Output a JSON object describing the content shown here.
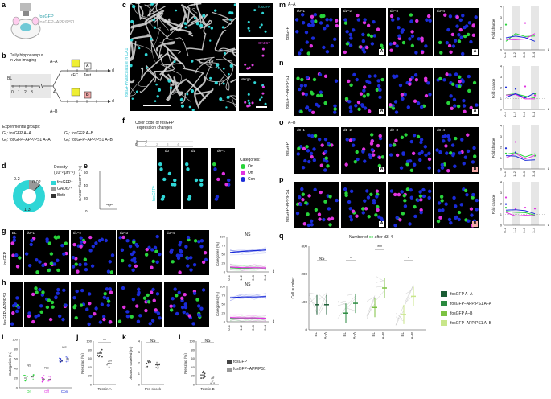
{
  "panel_letters": [
    "a",
    "b",
    "c",
    "d",
    "e",
    "f",
    "g",
    "h",
    "i",
    "j",
    "k",
    "l",
    "m",
    "n",
    "o",
    "p",
    "q"
  ],
  "a": {
    "line1": "fosGFP",
    "line2": "fosGFP–APP/PS1"
  },
  "b": {
    "title": "Daily hippocampus\nin vivo imaging",
    "bl": "BL",
    "d": "d",
    "ticks": [
      "0",
      "1",
      "2",
      "3",
      "4"
    ],
    "aa": "A–A",
    "ab": "A–B",
    "cfc": "cFC",
    "test": "Test",
    "box_a": "A",
    "box_b": "B",
    "groups_title": "Experimental groups:",
    "groups": [
      "G₁: fosGFP A–A",
      "G₂: fosGFP–APP/PS1 A–A",
      "G₃: fosGFP A–B",
      "G₄: fosGFP–APP/PS1 A–B"
    ]
  },
  "c": {
    "side": "fosGFP/vasculature in CA1",
    "inset1": "fosGFP",
    "inset2": "GAD67",
    "inset3": "Merge"
  },
  "d": {
    "title": "Density",
    "unit": "(10⁻² μm⁻²)",
    "v1": "1.3",
    "v2": "0.2",
    "v3": "0.02",
    "legend": [
      "fosGFP⁺",
      "GAD67⁺",
      "Both"
    ]
  },
  "e": {
    "ylabel": "GAD67⁺/fosGFP⁺ (%)",
    "ticks": [
      "0",
      "20",
      "40",
      "60"
    ]
  },
  "f": {
    "title": "Color code of fosGFP\nexpression changes",
    "ticks": [
      "0",
      "1",
      "2",
      "3",
      "4"
    ],
    "h1": "d0",
    "h2": "d1",
    "h3": "d0–1",
    "side": "fosGFP⁺",
    "cat_title": "Categories:",
    "cats": [
      "On",
      "Off",
      "Con"
    ]
  },
  "gh": {
    "headers": [
      "BL",
      "d0–1",
      "d1–2",
      "d2–3",
      "d3–4"
    ],
    "g_side": "fosGFP",
    "h_side": "fosGFP–APP/PS1",
    "ns": "NS",
    "ylabel": "Categories (%)",
    "yticks": [
      "0",
      "25",
      "50",
      "75",
      "100"
    ],
    "xticks": [
      "0–1",
      "1–2",
      "2–3",
      "3–4"
    ],
    "d": "d"
  },
  "i": {
    "ylabel": "Categories (%)",
    "yticks": [
      "0",
      "20",
      "40",
      "60",
      "80",
      "100"
    ],
    "x": [
      "On",
      "Off",
      "Con"
    ],
    "ns": "NS"
  },
  "j": {
    "ylabel": "Freezing (%)",
    "yticks": [
      "0",
      "20",
      "40",
      "60",
      "80",
      "100"
    ],
    "x": "Test in A",
    "sig": "**"
  },
  "k": {
    "ylabel": "Distance traveled (m)",
    "yticks": [
      "0",
      "1",
      "2",
      "3",
      "4"
    ],
    "x": "Pre-shock",
    "ns": "NS"
  },
  "l": {
    "ylabel": "Freezing (%)",
    "yticks": [
      "0",
      "20",
      "40",
      "60",
      "80",
      "100"
    ],
    "x": "Test in B",
    "ns": "NS"
  },
  "jkl_legend": [
    "fosGFP",
    "fosGFP–APP/PS1"
  ],
  "mnop": {
    "headers": [
      "d0–1",
      "d1–2",
      "d2–3",
      "d3–4"
    ],
    "m_cond": "A–A",
    "o_cond": "A–B",
    "m_side": "fosGFP",
    "n_side": "fosGFP–APP/PS1",
    "o_side": "fosGFP",
    "p_side": "fosGFP–APP/PS1",
    "ylabel": "Fold change",
    "yticks": [
      "0",
      "1",
      "2",
      "3",
      "4"
    ],
    "xticks": [
      "0–1",
      "1–2",
      "2–3",
      "3–4"
    ],
    "d": "d",
    "box_a": "A",
    "box_b": "B"
  },
  "q": {
    "title_pre": "Number of ",
    "title_on": "on",
    "title_post": " after d3–4",
    "ylabel": "Cell number",
    "yticks": [
      "0",
      "100",
      "200",
      "300"
    ],
    "x": [
      "BL",
      "A–A",
      "BL",
      "A–A",
      "BL",
      "A–B",
      "BL",
      "A–B"
    ],
    "sig": [
      "NS",
      "*",
      "***",
      "*"
    ],
    "legend": [
      "fosGFP A–A",
      "fosGFP–APP/PS1 A–A",
      "fosGFP A–B",
      "fosGFP–APP/PS1 A–B"
    ],
    "colors": [
      "#1a5c34",
      "#2a8a3f",
      "#7cc242",
      "#c8e68a"
    ]
  },
  "colors": {
    "on": "#28d43a",
    "off": "#e033e0",
    "con": "#1a2bd8",
    "cyan": "#2fd6d6",
    "ctrl_grey": "#444",
    "app_grey": "#999"
  },
  "chart_data": [
    {
      "type": "line",
      "title": "g",
      "series": [
        {
          "name": "On",
          "values": [
            12,
            10,
            11,
            11
          ]
        },
        {
          "name": "Off",
          "values": [
            14,
            12,
            12,
            11
          ]
        },
        {
          "name": "Con",
          "values": [
            55,
            58,
            60,
            62
          ]
        }
      ],
      "x": [
        "0–1",
        "1–2",
        "2–3",
        "3–4"
      ],
      "ylim": [
        0,
        100
      ]
    },
    {
      "type": "line",
      "title": "h",
      "series": [
        {
          "name": "On",
          "values": [
            10,
            9,
            10,
            10
          ]
        },
        {
          "name": "Off",
          "values": [
            12,
            11,
            11,
            10
          ]
        },
        {
          "name": "Con",
          "values": [
            68,
            70,
            70,
            71
          ]
        }
      ],
      "x": [
        "0–1",
        "1–2",
        "2–3",
        "3–4"
      ],
      "ylim": [
        0,
        100
      ]
    },
    {
      "type": "bar",
      "title": "j",
      "categories": [
        "fosGFP",
        "fosGFP–APP/PS1"
      ],
      "values": [
        72,
        48
      ],
      "ylim": [
        0,
        100
      ]
    },
    {
      "type": "bar",
      "title": "k",
      "categories": [
        "fosGFP",
        "fosGFP–APP/PS1"
      ],
      "values": [
        1.9,
        1.8
      ],
      "ylim": [
        0,
        4
      ]
    },
    {
      "type": "bar",
      "title": "l",
      "categories": [
        "fosGFP",
        "fosGFP–APP/PS1"
      ],
      "values": [
        22,
        10
      ],
      "ylim": [
        0,
        100
      ]
    },
    {
      "type": "scatter",
      "title": "q",
      "categories": [
        "BL",
        "A–A",
        "BL",
        "A–A",
        "BL",
        "A–B",
        "BL",
        "A–B"
      ],
      "values": [
        90,
        90,
        60,
        95,
        80,
        150,
        55,
        120
      ],
      "ylim": [
        0,
        300
      ]
    }
  ]
}
